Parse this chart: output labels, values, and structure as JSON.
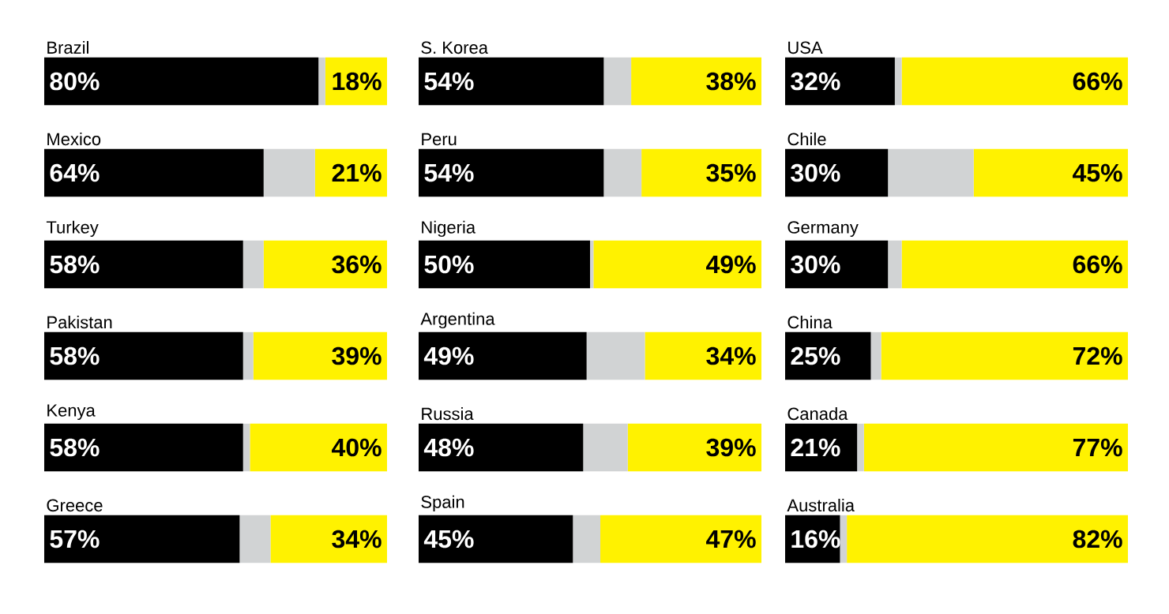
{
  "chart_data": [
    {
      "type": "bar",
      "orientation": "horizontal",
      "stacked": true,
      "tick_labels": false,
      "categories": [
        "Brazil",
        "Mexico",
        "Turkey",
        "Pakistan",
        "Kenya",
        "Greece"
      ],
      "series": [
        {
          "color": "#000000",
          "values": [
            80,
            64,
            58,
            58,
            58,
            57
          ],
          "value_labels": [
            "80%",
            "64%",
            "58%",
            "58%",
            "58%",
            "57%"
          ]
        },
        {
          "color": "#d1d3d4",
          "values": [
            2,
            15,
            6,
            3,
            2,
            9
          ]
        },
        {
          "color": "#fff200",
          "values": [
            18,
            21,
            36,
            39,
            40,
            34
          ],
          "value_labels": [
            "18%",
            "21%",
            "36%",
            "39%",
            "40%",
            "34%"
          ]
        }
      ]
    },
    {
      "type": "bar",
      "orientation": "horizontal",
      "stacked": true,
      "tick_labels": false,
      "categories": [
        "S. Korea",
        "Peru",
        "Nigeria",
        "Argentina",
        "Russia",
        "Spain"
      ],
      "series": [
        {
          "color": "#000000",
          "values": [
            54,
            54,
            50,
            49,
            48,
            45
          ],
          "value_labels": [
            "54%",
            "54%",
            "50%",
            "49%",
            "48%",
            "45%"
          ]
        },
        {
          "color": "#d1d3d4",
          "values": [
            8,
            11,
            1,
            17,
            13,
            8
          ]
        },
        {
          "color": "#fff200",
          "values": [
            38,
            35,
            49,
            34,
            39,
            47
          ],
          "value_labels": [
            "38%",
            "35%",
            "49%",
            "34%",
            "39%",
            "47%"
          ]
        }
      ]
    },
    {
      "type": "bar",
      "orientation": "horizontal",
      "stacked": true,
      "tick_labels": false,
      "categories": [
        "USA",
        "Chile",
        "Germany",
        "China",
        "Canada",
        "Australia"
      ],
      "series": [
        {
          "color": "#000000",
          "values": [
            32,
            30,
            30,
            25,
            21,
            16
          ],
          "value_labels": [
            "32%",
            "30%",
            "30%",
            "25%",
            "21%",
            "16%"
          ]
        },
        {
          "color": "#d1d3d4",
          "values": [
            2,
            25,
            4,
            3,
            2,
            2
          ]
        },
        {
          "color": "#fff200",
          "values": [
            66,
            45,
            66,
            72,
            77,
            82
          ],
          "value_labels": [
            "66%",
            "45%",
            "66%",
            "72%",
            "77%",
            "82%"
          ]
        }
      ]
    }
  ]
}
